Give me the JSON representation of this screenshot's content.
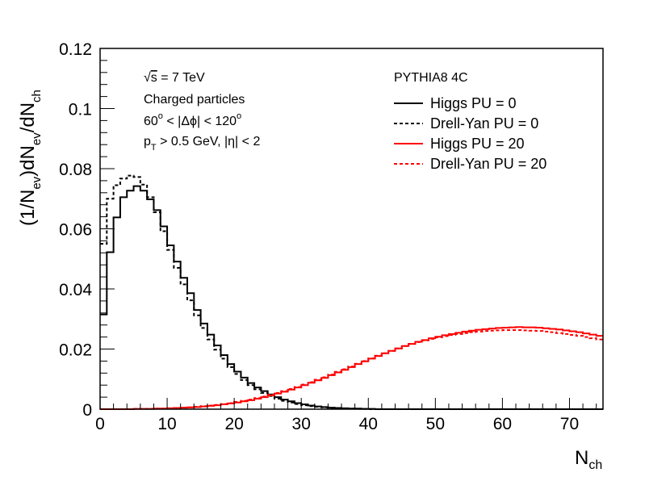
{
  "chart_data": {
    "type": "line",
    "histogram_style": "step",
    "x": {
      "label": "N",
      "label_sub": "ch",
      "range": [
        0,
        75
      ],
      "ticks": [
        0,
        10,
        20,
        30,
        40,
        50,
        60,
        70
      ],
      "bin_width": 1
    },
    "y": {
      "label_parts": [
        "(1/N",
        "ev",
        ")dN",
        "ev",
        "/dN",
        "ch"
      ],
      "range": [
        0,
        0.12
      ],
      "ticks": [
        0,
        0.02,
        0.04,
        0.06,
        0.08,
        0.1,
        0.12
      ],
      "tick_labels": [
        "0",
        "0.02",
        "0.04",
        "0.06",
        "0.08",
        "0.1",
        "0.12"
      ]
    },
    "annotations": {
      "energy": {
        "sqrt": "√",
        "s": "s",
        "rest": " = 7 TeV"
      },
      "particles": "Charged particles",
      "dphi": {
        "a": "60",
        "b": "o",
        "c": " < |Δϕ| < 120",
        "d": "o"
      },
      "kin": {
        "p": "p",
        "t": "T",
        "rest": " > 0.5 GeV, |η| < 2"
      }
    },
    "legend": {
      "header": "PYTHIA8 4C",
      "position": "top-right",
      "entries": [
        "Higgs PU = 0",
        "Drell-Yan PU = 0",
        "Higgs PU = 20",
        "Drell-Yan PU = 20"
      ]
    },
    "series": [
      {
        "name": "Higgs PU = 0",
        "color": "#000000",
        "dashed": false,
        "values": [
          0.0315,
          0.0522,
          0.0638,
          0.0705,
          0.0727,
          0.0742,
          0.0727,
          0.0698,
          0.0662,
          0.0608,
          0.0545,
          0.0491,
          0.0437,
          0.0386,
          0.033,
          0.0285,
          0.0248,
          0.0212,
          0.018,
          0.015,
          0.0125,
          0.0105,
          0.0087,
          0.0072,
          0.006,
          0.0049,
          0.004,
          0.0032,
          0.0026,
          0.002,
          0.0016,
          0.0012,
          0.0009,
          0.0007,
          0.0005,
          0.0004,
          0.0003,
          0.0002,
          0.0002,
          0.0001,
          0.0001,
          0,
          0,
          0,
          0,
          0,
          0,
          0,
          0,
          0,
          0,
          0,
          0,
          0,
          0,
          0,
          0,
          0,
          0,
          0,
          0,
          0,
          0,
          0,
          0,
          0,
          0,
          0,
          0,
          0,
          0,
          0,
          0,
          0,
          0
        ]
      },
      {
        "name": "Drell-Yan PU = 0",
        "color": "#000000",
        "dashed": true,
        "values": [
          0.055,
          0.07,
          0.0745,
          0.0767,
          0.0777,
          0.0772,
          0.0747,
          0.0705,
          0.0655,
          0.0592,
          0.053,
          0.047,
          0.0415,
          0.0362,
          0.0312,
          0.027,
          0.0232,
          0.0198,
          0.0168,
          0.014,
          0.0117,
          0.0097,
          0.008,
          0.0066,
          0.0054,
          0.0044,
          0.0035,
          0.0028,
          0.0022,
          0.0017,
          0.0013,
          0.001,
          0.0008,
          0.0006,
          0.0004,
          0.0003,
          0.0002,
          0.0002,
          0.0001,
          0.0001,
          0,
          0,
          0,
          0,
          0,
          0,
          0,
          0,
          0,
          0,
          0,
          0,
          0,
          0,
          0,
          0,
          0,
          0,
          0,
          0,
          0,
          0,
          0,
          0,
          0,
          0,
          0,
          0,
          0,
          0,
          0,
          0,
          0,
          0,
          0
        ]
      },
      {
        "name": "Higgs PU = 20",
        "color": "#ff0000",
        "dashed": false,
        "values": [
          0,
          0,
          0,
          0,
          0,
          0.0001,
          0.0001,
          0.0001,
          0.0002,
          0.0002,
          0.0003,
          0.0004,
          0.0005,
          0.0006,
          0.0007,
          0.0009,
          0.0011,
          0.0013,
          0.0016,
          0.0019,
          0.0022,
          0.0026,
          0.003,
          0.0035,
          0.004,
          0.0046,
          0.0052,
          0.0058,
          0.0065,
          0.0072,
          0.008,
          0.0088,
          0.0096,
          0.0104,
          0.0113,
          0.0122,
          0.0131,
          0.014,
          0.015,
          0.0159,
          0.0168,
          0.0177,
          0.0186,
          0.0194,
          0.0202,
          0.021,
          0.0217,
          0.0224,
          0.023,
          0.0236,
          0.0241,
          0.0246,
          0.025,
          0.0254,
          0.0258,
          0.0261,
          0.0264,
          0.0266,
          0.0268,
          0.027,
          0.0271,
          0.0272,
          0.0273,
          0.0272,
          0.0272,
          0.0271,
          0.0269,
          0.0267,
          0.0265,
          0.0262,
          0.0259,
          0.0256,
          0.0252,
          0.0248,
          0.0244
        ]
      },
      {
        "name": "Drell-Yan PU = 20",
        "color": "#ff0000",
        "dashed": true,
        "values": [
          0,
          0,
          0,
          0,
          0,
          0.0001,
          0.0001,
          0.0001,
          0.0002,
          0.0002,
          0.0003,
          0.0004,
          0.0005,
          0.0006,
          0.0008,
          0.001,
          0.0012,
          0.0014,
          0.0017,
          0.002,
          0.0024,
          0.0028,
          0.0032,
          0.0037,
          0.0042,
          0.0048,
          0.0054,
          0.006,
          0.0067,
          0.0074,
          0.0082,
          0.009,
          0.0098,
          0.0106,
          0.0115,
          0.0124,
          0.0133,
          0.0142,
          0.0151,
          0.016,
          0.0169,
          0.0178,
          0.0186,
          0.0194,
          0.0202,
          0.021,
          0.0217,
          0.0223,
          0.0229,
          0.0234,
          0.0239,
          0.0243,
          0.0247,
          0.025,
          0.0253,
          0.0256,
          0.0258,
          0.026,
          0.0261,
          0.0262,
          0.0263,
          0.0263,
          0.0263,
          0.0262,
          0.0261,
          0.026,
          0.0258,
          0.0256,
          0.0253,
          0.025,
          0.0247,
          0.0244,
          0.024,
          0.0236,
          0.0232
        ]
      }
    ]
  }
}
